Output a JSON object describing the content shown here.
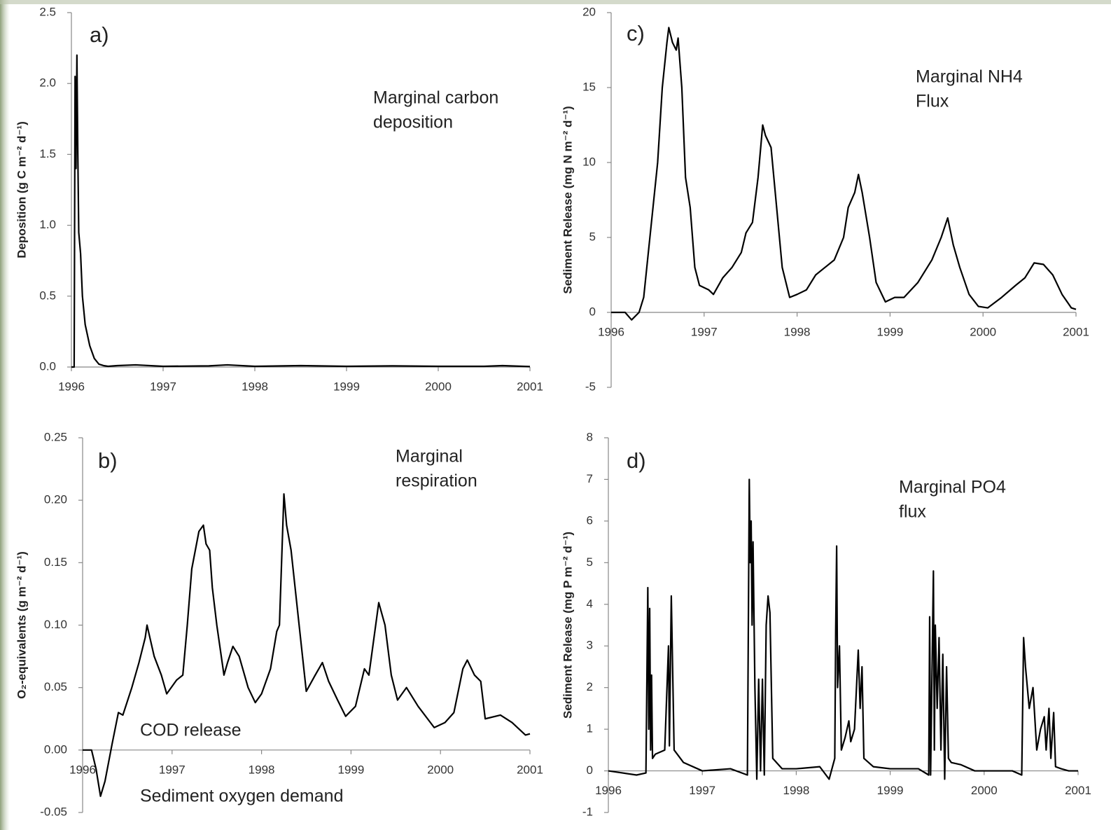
{
  "chart_data": [
    {
      "type": "line",
      "label": "a)",
      "annotations": [
        "Marginal carbon",
        "deposition"
      ],
      "ylabel": "Deposition (g C m⁻² d⁻¹)",
      "color": "#000000",
      "x": [
        1996,
        1996.03,
        1996.04,
        1996.05,
        1996.06,
        1996.07,
        1996.08,
        1996.1,
        1996.12,
        1996.15,
        1996.2,
        1996.25,
        1996.3,
        1996.35,
        1996.4,
        1996.5,
        1996.7,
        1997,
        1997.5,
        1997.7,
        1998,
        1998.5,
        1999,
        1999.5,
        2000,
        2000.5,
        2000.7,
        2001
      ],
      "values": [
        0,
        0,
        2.05,
        1.4,
        2.2,
        1.5,
        0.95,
        0.8,
        0.5,
        0.3,
        0.15,
        0.06,
        0.02,
        0.01,
        0.005,
        0.01,
        0.015,
        0.005,
        0.008,
        0.015,
        0.005,
        0.01,
        0.005,
        0.008,
        0.005,
        0.005,
        0.01,
        0.003
      ],
      "xlim": [
        1996,
        2001
      ],
      "xticks": [
        1996,
        1997,
        1998,
        1999,
        2000,
        2001
      ],
      "ylim": [
        0,
        2.5
      ],
      "yticks": [
        {
          "value": 0,
          "label": "0.0"
        },
        0.5,
        {
          "value": 1,
          "label": "1.0"
        },
        1.5,
        {
          "value": 2,
          "label": "2.0"
        },
        2.5
      ]
    },
    {
      "type": "line",
      "label": "b)",
      "annotations": [
        "Marginal",
        "respiration",
        "COD release",
        "Sediment oxygen demand"
      ],
      "ylabel": "O₂-equivalents (g m⁻² d⁻¹)",
      "color": "#000000",
      "x": [
        1996,
        1996.1,
        1996.15,
        1996.2,
        1996.25,
        1996.33,
        1996.4,
        1996.45,
        1996.55,
        1996.63,
        1996.7,
        1996.72,
        1996.8,
        1996.88,
        1996.94,
        1997.05,
        1997.12,
        1997.17,
        1997.22,
        1997.3,
        1997.35,
        1997.38,
        1997.42,
        1997.45,
        1997.5,
        1997.58,
        1997.62,
        1997.68,
        1997.75,
        1997.85,
        1997.93,
        1998.0,
        1998.1,
        1998.17,
        1998.2,
        1998.25,
        1998.28,
        1998.33,
        1998.42,
        1998.5,
        1998.6,
        1998.68,
        1998.75,
        1998.85,
        1998.94,
        1999.05,
        1999.15,
        1999.2,
        1999.31,
        1999.38,
        1999.45,
        1999.52,
        1999.62,
        1999.75,
        1999.93,
        2000.05,
        2000.15,
        2000.25,
        2000.3,
        2000.38,
        2000.45,
        2000.5,
        2000.67,
        2000.8,
        2000.95,
        2001
      ],
      "values": [
        0,
        0,
        -0.015,
        -0.037,
        -0.025,
        0.005,
        0.03,
        0.028,
        0.05,
        0.07,
        0.09,
        0.1,
        0.075,
        0.06,
        0.045,
        0.056,
        0.06,
        0.1,
        0.145,
        0.175,
        0.18,
        0.165,
        0.16,
        0.13,
        0.1,
        0.06,
        0.07,
        0.083,
        0.075,
        0.05,
        0.038,
        0.045,
        0.065,
        0.095,
        0.1,
        0.205,
        0.18,
        0.16,
        0.1,
        0.047,
        0.06,
        0.07,
        0.055,
        0.04,
        0.027,
        0.035,
        0.065,
        0.06,
        0.118,
        0.1,
        0.06,
        0.04,
        0.05,
        0.035,
        0.018,
        0.022,
        0.03,
        0.065,
        0.072,
        0.06,
        0.055,
        0.025,
        0.028,
        0.022,
        0.012,
        0.013
      ],
      "xlim": [
        1996,
        2001
      ],
      "xticks": [
        1996,
        1997,
        1998,
        1999,
        2000,
        2001
      ],
      "ylim": [
        -0.05,
        0.25
      ],
      "yticks": [
        -0.05,
        {
          "value": 0,
          "label": "0.00"
        },
        0.05,
        {
          "value": 0.1,
          "label": "0.10"
        },
        0.15,
        {
          "value": 0.2,
          "label": "0.20"
        },
        0.25
      ]
    },
    {
      "type": "line",
      "label": "c)",
      "annotations": [
        "Marginal NH4",
        "Flux"
      ],
      "ylabel": "Sediment Release (mg N m⁻² d⁻¹)",
      "color": "#000000",
      "x": [
        1996,
        1996.15,
        1996.22,
        1996.3,
        1996.35,
        1996.4,
        1996.45,
        1996.5,
        1996.55,
        1996.6,
        1996.62,
        1996.66,
        1996.7,
        1996.72,
        1996.76,
        1996.8,
        1996.85,
        1996.9,
        1996.95,
        1997.05,
        1997.1,
        1997.2,
        1997.3,
        1997.4,
        1997.45,
        1997.52,
        1997.58,
        1997.63,
        1997.66,
        1997.72,
        1997.78,
        1997.84,
        1997.92,
        1998.0,
        1998.1,
        1998.2,
        1998.3,
        1998.4,
        1998.5,
        1998.55,
        1998.62,
        1998.66,
        1998.7,
        1998.78,
        1998.85,
        1998.95,
        1999.05,
        1999.15,
        1999.3,
        1999.45,
        1999.55,
        1999.62,
        1999.68,
        1999.75,
        1999.85,
        1999.95,
        2000.05,
        2000.2,
        2000.35,
        2000.45,
        2000.55,
        2000.65,
        2000.75,
        2000.85,
        2000.95,
        2001
      ],
      "values": [
        0,
        0,
        -0.5,
        0,
        1,
        4,
        7,
        10,
        15,
        18,
        19,
        18,
        17.5,
        18.3,
        15,
        9,
        7,
        3,
        1.8,
        1.5,
        1.2,
        2.3,
        3,
        4,
        5.3,
        6,
        9,
        12.5,
        11.8,
        11,
        7,
        3,
        1,
        1.2,
        1.5,
        2.5,
        3,
        3.5,
        5,
        7,
        8,
        9.2,
        8,
        5,
        2,
        0.7,
        1,
        1,
        2,
        3.5,
        5,
        6.3,
        4.5,
        3,
        1.2,
        0.4,
        0.3,
        1,
        1.8,
        2.3,
        3.3,
        3.2,
        2.5,
        1.2,
        0.3,
        0.2
      ],
      "xlim": [
        1996,
        2001
      ],
      "xticks": [
        1996,
        1997,
        1998,
        1999,
        2000,
        2001
      ],
      "ylim": [
        -5,
        20
      ],
      "yticks": [
        -5,
        0,
        5,
        10,
        15,
        20
      ]
    },
    {
      "type": "line",
      "label": "d)",
      "annotations": [
        "Marginal PO4",
        "flux"
      ],
      "ylabel": "Sediment Release (mg P m⁻² d⁻¹)",
      "color": "#000000",
      "x": [
        1996,
        1996.3,
        1996.4,
        1996.42,
        1996.43,
        1996.44,
        1996.45,
        1996.46,
        1996.47,
        1996.5,
        1996.6,
        1996.64,
        1996.65,
        1996.67,
        1996.7,
        1996.8,
        1997,
        1997.3,
        1997.48,
        1997.5,
        1997.51,
        1997.52,
        1997.53,
        1997.54,
        1997.56,
        1997.58,
        1997.6,
        1997.62,
        1997.64,
        1997.66,
        1997.68,
        1997.7,
        1997.72,
        1997.75,
        1997.85,
        1998.0,
        1998.25,
        1998.35,
        1998.41,
        1998.42,
        1998.43,
        1998.44,
        1998.46,
        1998.48,
        1998.52,
        1998.56,
        1998.58,
        1998.62,
        1998.66,
        1998.68,
        1998.7,
        1998.72,
        1998.82,
        1999.0,
        1999.3,
        1999.41,
        1999.42,
        1999.43,
        1999.46,
        1999.47,
        1999.48,
        1999.5,
        1999.52,
        1999.54,
        1999.56,
        1999.58,
        1999.6,
        1999.62,
        1999.65,
        1999.75,
        1999.9,
        2000.3,
        2000.4,
        2000.42,
        2000.44,
        2000.48,
        2000.52,
        2000.56,
        2000.6,
        2000.64,
        2000.66,
        2000.69,
        2000.71,
        2000.74,
        2000.76,
        2000.82,
        2000.9,
        2001
      ],
      "values": [
        0,
        -0.1,
        -0.05,
        4.4,
        1,
        3.9,
        0.5,
        2.3,
        0.3,
        0.4,
        0.5,
        3,
        0.6,
        4.2,
        0.5,
        0.2,
        0,
        0.05,
        -0.1,
        7,
        5,
        6,
        3.5,
        5.5,
        2,
        -0.2,
        2.2,
        0,
        2.2,
        -0.1,
        3.5,
        4.2,
        3.8,
        0.3,
        0.05,
        0.05,
        0.1,
        -0.2,
        0.3,
        3.4,
        5.4,
        2,
        3,
        0.5,
        0.8,
        1.2,
        0.7,
        1,
        2.9,
        1.5,
        2.5,
        0.3,
        0.1,
        0.05,
        0.05,
        -0.1,
        3.7,
        -0.1,
        4.8,
        0.5,
        3.5,
        1.5,
        3.2,
        0.5,
        2.8,
        -0.2,
        2.5,
        0.3,
        0.2,
        0.15,
        0,
        0,
        -0.1,
        3.2,
        2.5,
        1.5,
        2,
        0.5,
        1,
        1.3,
        0.5,
        1.5,
        0.3,
        1.4,
        0.1,
        0.05,
        0,
        0
      ],
      "xlim": [
        1996,
        2001
      ],
      "xticks": [
        1996,
        1997,
        1998,
        1999,
        2000,
        2001
      ],
      "ylim": [
        -1,
        8
      ],
      "yticks": [
        -1,
        0,
        1,
        2,
        3,
        4,
        5,
        6,
        7,
        8
      ]
    }
  ]
}
